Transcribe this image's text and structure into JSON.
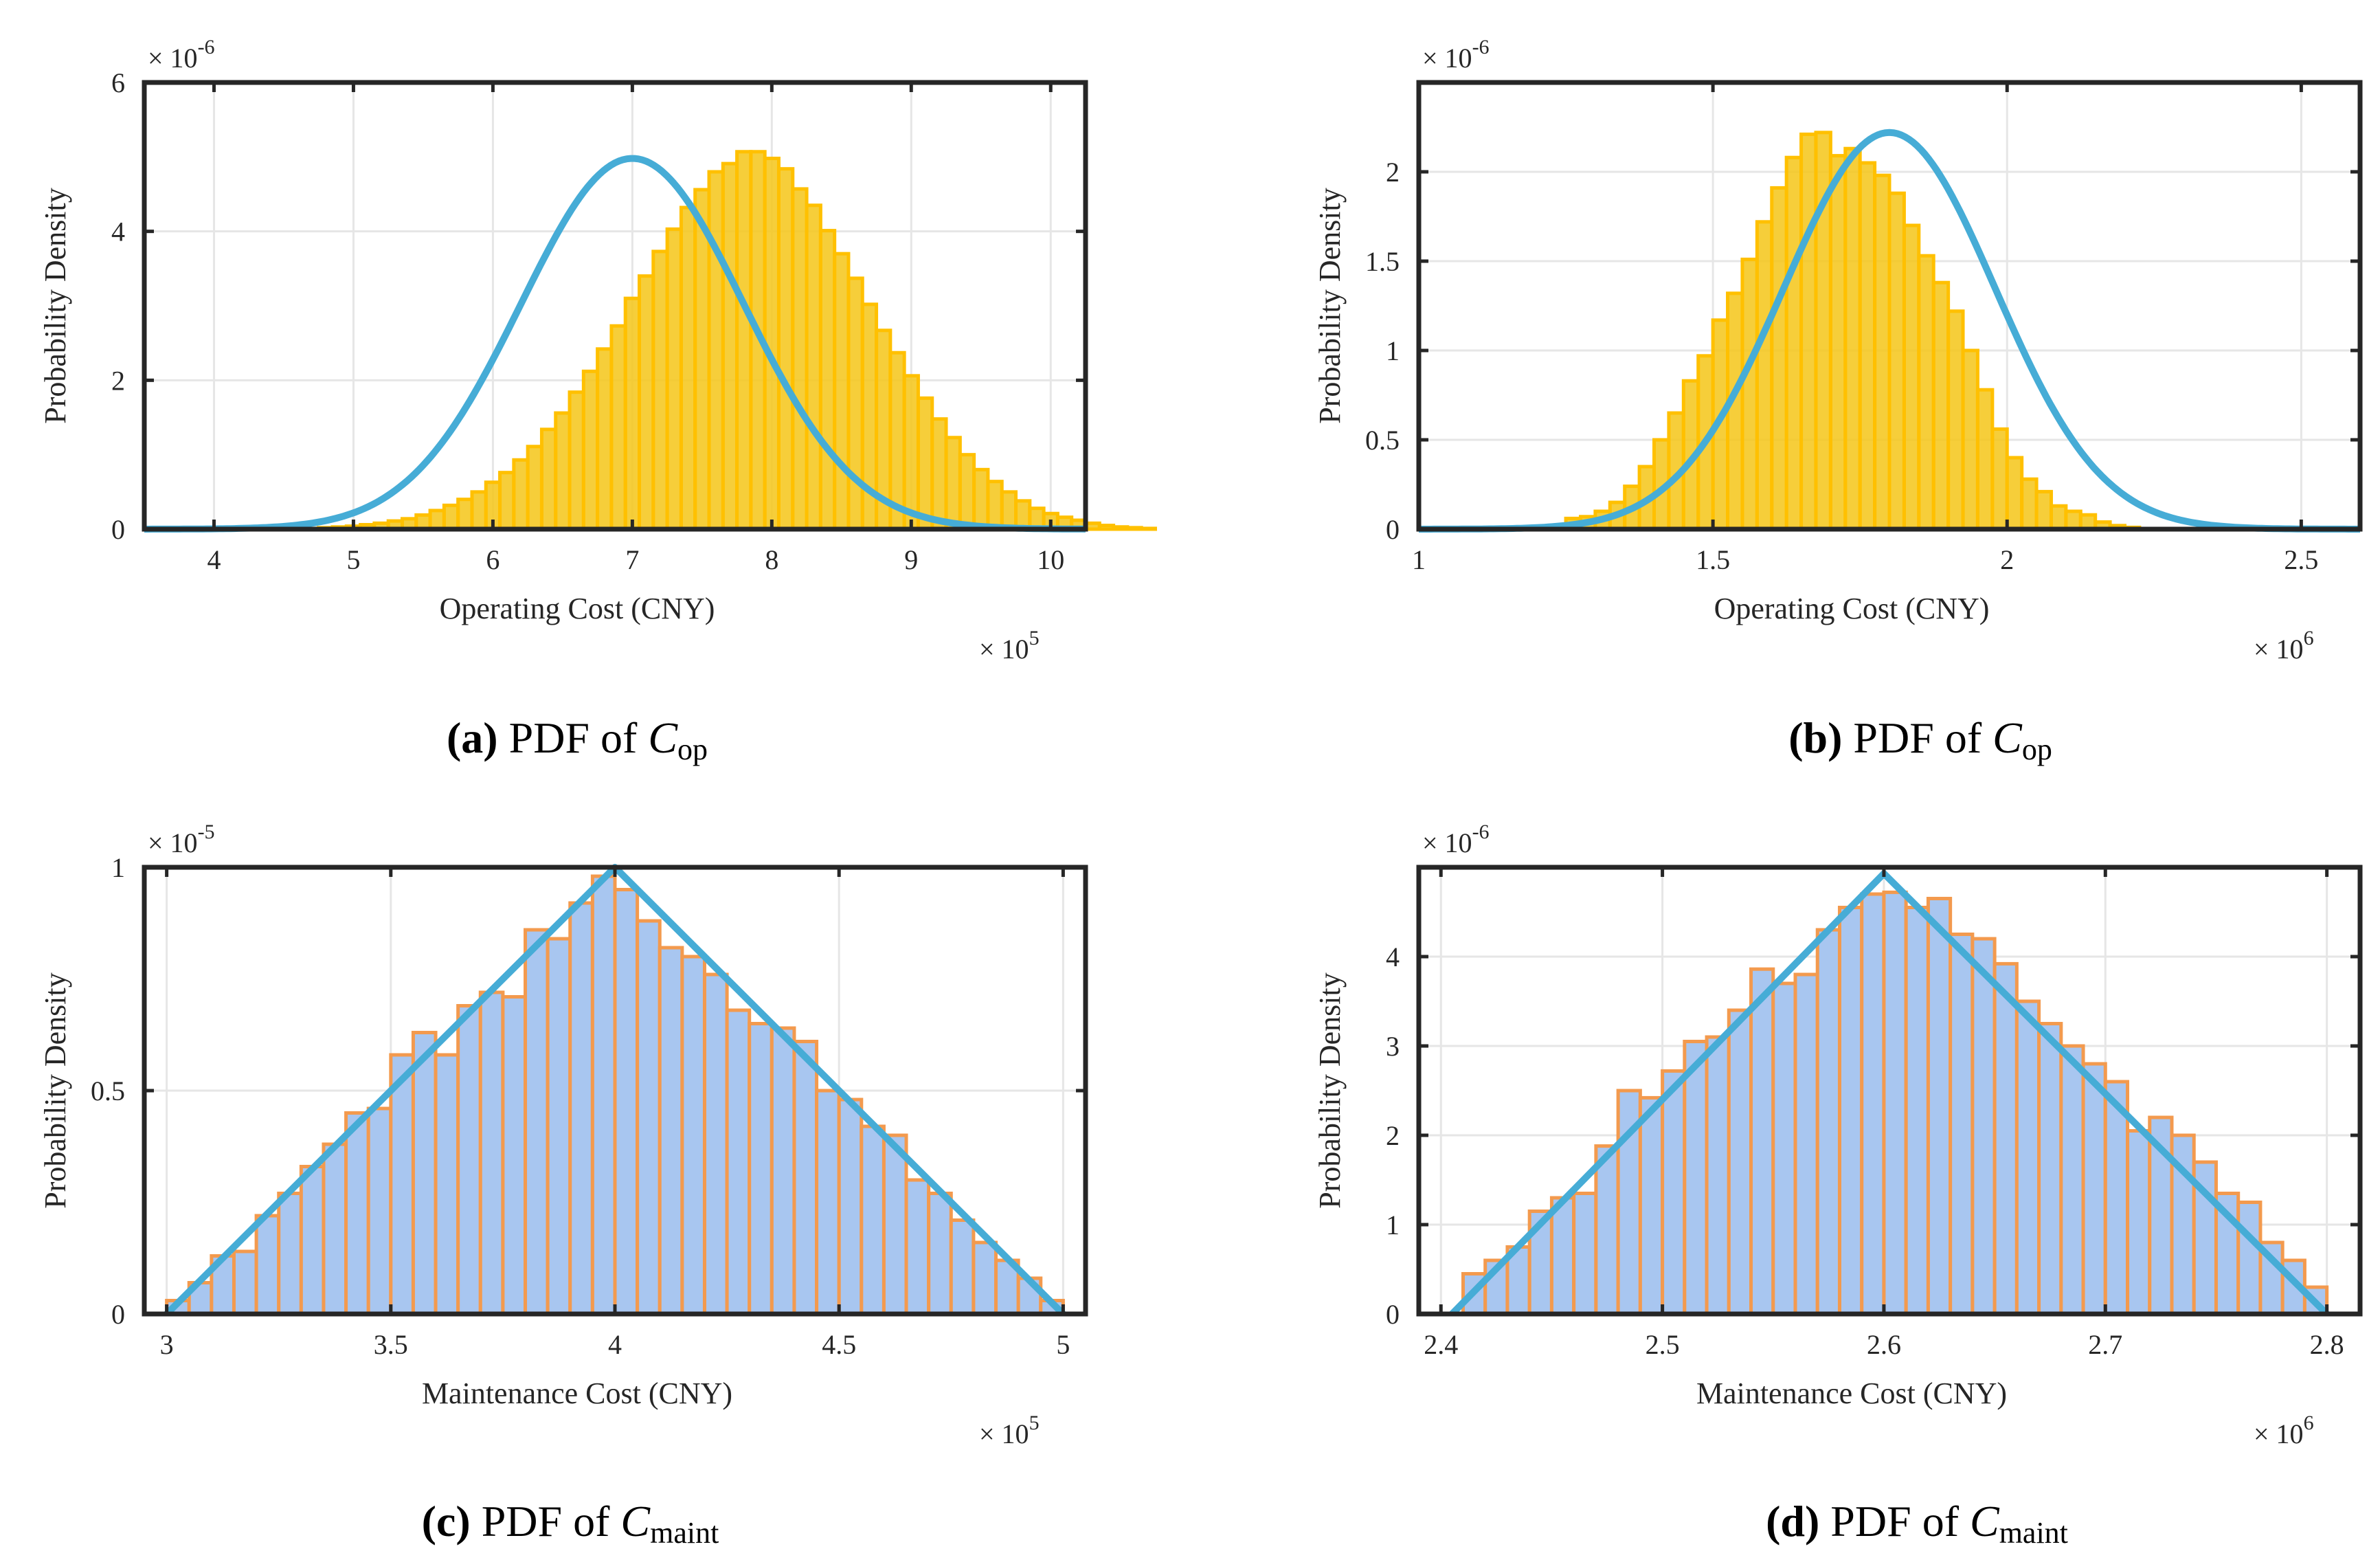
{
  "colors": {
    "yellow_fill": "#f5c518",
    "yellow_edge": "#ffc000",
    "blue_fill": "#a8c6f0",
    "orange_edge": "#f39a4e",
    "curve": "#46acd6",
    "axis": "#262626"
  },
  "chart_data": [
    {
      "id": "a",
      "type": "bar",
      "subtype": "histogram-with-pdf-curve",
      "caption": {
        "letter": "(a)",
        "text": " PDF of ",
        "var_main": "C",
        "var_sub": "op"
      },
      "xlabel": "Operating Cost (CNY)",
      "ylabel": "Probability Density",
      "x_multiplier": "× 10",
      "x_exponent": "5",
      "y_multiplier": "× 10",
      "y_exponent": "-6",
      "xlim": [
        3.5,
        10.25
      ],
      "ylim": [
        0,
        6
      ],
      "xticks": [
        4,
        5,
        6,
        7,
        8,
        9,
        10
      ],
      "yticks": [
        0,
        2,
        4,
        6
      ],
      "bins": {
        "start": 3.65,
        "width": 0.1,
        "values": [
          0.0,
          0.0,
          0.0,
          0.0,
          0.0,
          0.0,
          0.0,
          0.0,
          0.0,
          0.0,
          0.01,
          0.02,
          0.03,
          0.04,
          0.06,
          0.08,
          0.11,
          0.14,
          0.19,
          0.25,
          0.32,
          0.4,
          0.5,
          0.63,
          0.76,
          0.93,
          1.11,
          1.34,
          1.56,
          1.84,
          2.12,
          2.42,
          2.73,
          3.1,
          3.4,
          3.73,
          4.03,
          4.32,
          4.56,
          4.8,
          4.91,
          5.07,
          5.07,
          4.98,
          4.84,
          4.57,
          4.35,
          4.01,
          3.7,
          3.37,
          3.02,
          2.67,
          2.37,
          2.06,
          1.76,
          1.48,
          1.23,
          1.0,
          0.8,
          0.64,
          0.5,
          0.38,
          0.28,
          0.21,
          0.16,
          0.12,
          0.08,
          0.05,
          0.03,
          0.02,
          0.01,
          0.0,
          0.0,
          0.0,
          0.0,
          0.0
        ]
      },
      "curve": {
        "kind": "normal",
        "mean": 7.0,
        "sd": 0.8,
        "peak": 4.98
      }
    },
    {
      "id": "b",
      "type": "bar",
      "subtype": "histogram-with-pdf-curve",
      "caption": {
        "letter": "(b)",
        "text": " PDF of ",
        "var_main": "C",
        "var_sub": "op"
      },
      "xlabel": "Operating Cost (CNY)",
      "ylabel": "Probability Density",
      "x_multiplier": "× 10",
      "x_exponent": "6",
      "y_multiplier": "× 10",
      "y_exponent": "-6",
      "xlim": [
        1.0,
        2.6
      ],
      "ylim": [
        0,
        2.5
      ],
      "xticks": [
        1,
        1.5,
        2,
        2.5
      ],
      "yticks": [
        0,
        0.5,
        1,
        1.5,
        2
      ],
      "bins": {
        "start": 1.2,
        "width": 0.025,
        "values": [
          0.0,
          0.02,
          0.06,
          0.07,
          0.1,
          0.15,
          0.24,
          0.35,
          0.5,
          0.65,
          0.83,
          0.97,
          1.17,
          1.32,
          1.51,
          1.72,
          1.91,
          2.08,
          2.21,
          2.22,
          2.09,
          2.13,
          2.05,
          1.98,
          1.88,
          1.7,
          1.53,
          1.38,
          1.22,
          1.0,
          0.78,
          0.56,
          0.4,
          0.28,
          0.21,
          0.13,
          0.1,
          0.08,
          0.04,
          0.02,
          0.01,
          0.0,
          0.0,
          0.0,
          0.0,
          0.0,
          0.0,
          0.0
        ]
      },
      "curve": {
        "kind": "normal",
        "mean": 1.8,
        "sd": 0.18,
        "peak": 2.22
      }
    },
    {
      "id": "c",
      "type": "bar",
      "subtype": "histogram-with-pdf-curve",
      "caption": {
        "letter": "(c)",
        "text": " PDF of ",
        "var_main": "C",
        "var_sub": "maint"
      },
      "xlabel": "Maintenance Cost (CNY)",
      "ylabel": "Probability Density",
      "x_multiplier": "× 10",
      "x_exponent": "5",
      "y_multiplier": "× 10",
      "y_exponent": "-5",
      "xlim": [
        2.95,
        5.05
      ],
      "ylim": [
        0,
        1
      ],
      "xticks": [
        3,
        3.5,
        4,
        4.5,
        5
      ],
      "yticks": [
        0,
        0.5,
        1
      ],
      "bins": {
        "start": 3.0,
        "width": 0.05,
        "values": [
          0.03,
          0.07,
          0.13,
          0.14,
          0.22,
          0.27,
          0.33,
          0.38,
          0.45,
          0.46,
          0.58,
          0.63,
          0.58,
          0.69,
          0.72,
          0.71,
          0.86,
          0.84,
          0.92,
          0.98,
          0.95,
          0.88,
          0.82,
          0.8,
          0.76,
          0.68,
          0.65,
          0.64,
          0.61,
          0.5,
          0.48,
          0.42,
          0.4,
          0.3,
          0.27,
          0.21,
          0.16,
          0.12,
          0.08,
          0.03
        ]
      },
      "curve": {
        "kind": "triangular",
        "min": 3.0,
        "mode": 4.0,
        "max": 5.0,
        "peak": 1.0
      }
    },
    {
      "id": "d",
      "type": "bar",
      "subtype": "histogram-with-pdf-curve",
      "caption": {
        "letter": "(d)",
        "text": " PDF of ",
        "var_main": "C",
        "var_sub": "maint"
      },
      "xlabel": "Maintenance Cost (CNY)",
      "ylabel": "Probability Density",
      "x_multiplier": "× 10",
      "x_exponent": "6",
      "y_multiplier": "× 10",
      "y_exponent": "-6",
      "xlim": [
        2.39,
        2.815
      ],
      "ylim": [
        0,
        5
      ],
      "xticks": [
        2.4,
        2.5,
        2.6,
        2.7,
        2.8
      ],
      "yticks": [
        0,
        1,
        2,
        3,
        4
      ],
      "bins": {
        "start": 2.4,
        "width": 0.01,
        "values": [
          0.0,
          0.45,
          0.6,
          0.75,
          1.15,
          1.3,
          1.35,
          1.88,
          2.5,
          2.42,
          2.72,
          3.05,
          3.1,
          3.4,
          3.86,
          3.7,
          3.8,
          4.3,
          4.55,
          4.7,
          4.72,
          4.55,
          4.65,
          4.25,
          4.2,
          3.92,
          3.5,
          3.25,
          3.0,
          2.8,
          2.6,
          2.05,
          2.2,
          2.0,
          1.7,
          1.35,
          1.25,
          0.8,
          0.6,
          0.3
        ]
      },
      "curve": {
        "kind": "triangular",
        "min": 2.405,
        "mode": 2.6,
        "max": 2.8,
        "peak": 4.93
      }
    }
  ]
}
